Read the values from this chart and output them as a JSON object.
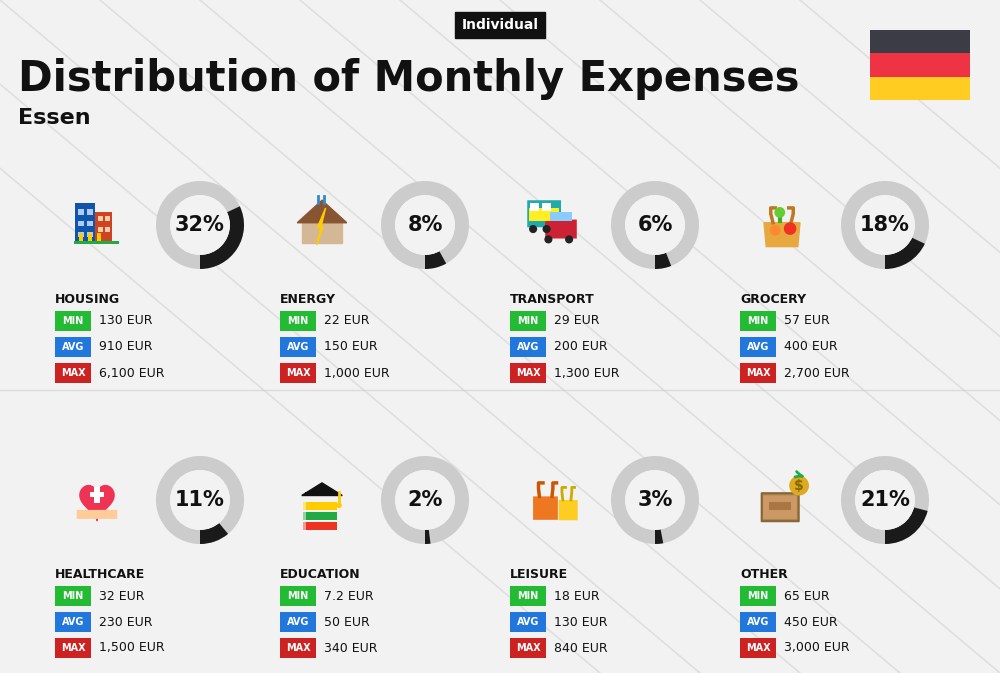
{
  "title": "Distribution of Monthly Expenses",
  "subtitle": "Individual",
  "city": "Essen",
  "bg_color": "#f2f2f2",
  "categories": [
    {
      "name": "HOUSING",
      "percent": 32,
      "min": "130 EUR",
      "avg": "910 EUR",
      "max": "6,100 EUR",
      "row": 0,
      "col": 0
    },
    {
      "name": "ENERGY",
      "percent": 8,
      "min": "22 EUR",
      "avg": "150 EUR",
      "max": "1,000 EUR",
      "row": 0,
      "col": 1
    },
    {
      "name": "TRANSPORT",
      "percent": 6,
      "min": "29 EUR",
      "avg": "200 EUR",
      "max": "1,300 EUR",
      "row": 0,
      "col": 2
    },
    {
      "name": "GROCERY",
      "percent": 18,
      "min": "57 EUR",
      "avg": "400 EUR",
      "max": "2,700 EUR",
      "row": 0,
      "col": 3
    },
    {
      "name": "HEALTHCARE",
      "percent": 11,
      "min": "32 EUR",
      "avg": "230 EUR",
      "max": "1,500 EUR",
      "row": 1,
      "col": 0
    },
    {
      "name": "EDUCATION",
      "percent": 2,
      "min": "7.2 EUR",
      "avg": "50 EUR",
      "max": "340 EUR",
      "row": 1,
      "col": 1
    },
    {
      "name": "LEISURE",
      "percent": 3,
      "min": "18 EUR",
      "avg": "130 EUR",
      "max": "840 EUR",
      "row": 1,
      "col": 2
    },
    {
      "name": "OTHER",
      "percent": 21,
      "min": "65 EUR",
      "avg": "450 EUR",
      "max": "3,000 EUR",
      "row": 1,
      "col": 3
    }
  ],
  "color_min": "#22bb33",
  "color_avg": "#2277dd",
  "color_max": "#cc2222",
  "donut_dark": "#1a1a1a",
  "donut_bg": "#cccccc",
  "german_flag": {
    "black": "#3c3c47",
    "red": "#ee3344",
    "gold": "#ffcc22"
  },
  "diag_color": "#c8c8c8",
  "title_fontsize": 30,
  "city_fontsize": 16,
  "cat_fontsize": 9,
  "val_fontsize": 9,
  "badge_fontsize": 7,
  "pct_fontsize": 15
}
